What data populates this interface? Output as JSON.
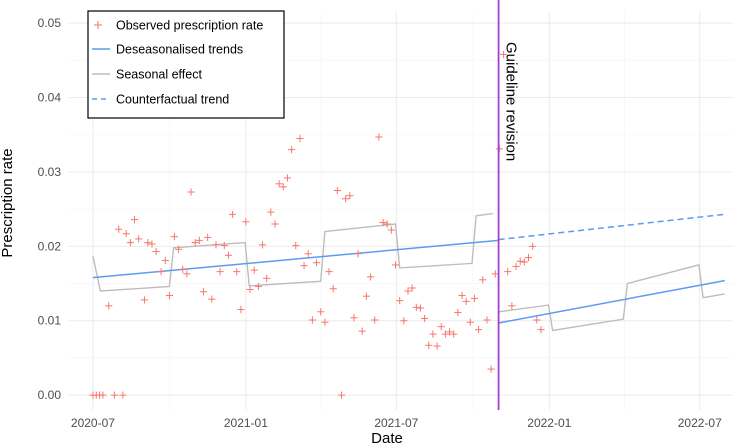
{
  "chart_data": {
    "type": "scatter",
    "title": "",
    "xlabel": "Date",
    "ylabel": "Prescription rate",
    "xlim": [
      "2020-06-01",
      "2022-08-10"
    ],
    "ylim": [
      -0.002,
      0.0515
    ],
    "grid": true,
    "x_ticks": [
      {
        "date": "2020-07-01",
        "label": "2020-07"
      },
      {
        "date": "2021-01-01",
        "label": "2021-01"
      },
      {
        "date": "2021-07-01",
        "label": "2021-07"
      },
      {
        "date": "2022-01-01",
        "label": "2022-01"
      },
      {
        "date": "2022-07-01",
        "label": "2022-07"
      }
    ],
    "y_ticks": [
      {
        "value": 0.0,
        "label": "0.00"
      },
      {
        "value": 0.01,
        "label": "0.01"
      },
      {
        "value": 0.02,
        "label": "0.02"
      },
      {
        "value": 0.03,
        "label": "0.03"
      },
      {
        "value": 0.04,
        "label": "0.04"
      },
      {
        "value": 0.05,
        "label": "0.05"
      }
    ],
    "legend": {
      "position": "top-left",
      "entries": [
        {
          "key": "observed",
          "label": "Observed prescription rate"
        },
        {
          "key": "deseasonalised",
          "label": "Deseasonalised trends"
        },
        {
          "key": "seasonal",
          "label": "Seasonal effect"
        },
        {
          "key": "counterfactual",
          "label": "Counterfactual trend"
        }
      ]
    },
    "colors": {
      "observed": "#f8766d",
      "trend": "#5b9bf0",
      "seasonal": "#bdbdbd",
      "intervention": "#a63fc9",
      "grid": "#ebebeb"
    },
    "intervention": {
      "date": "2021-11-01",
      "label": "Guideline revision"
    },
    "series": [
      {
        "name": "Observed prescription rate",
        "kind": "points",
        "points": [
          [
            "2020-07-01",
            0.0
          ],
          [
            "2020-07-05",
            0.0
          ],
          [
            "2020-07-09",
            0.0
          ],
          [
            "2020-07-13",
            0.0
          ],
          [
            "2020-07-20",
            0.012
          ],
          [
            "2020-07-27",
            0.0
          ],
          [
            "2020-08-01",
            0.0223
          ],
          [
            "2020-08-06",
            0.0
          ],
          [
            "2020-08-10",
            0.0217
          ],
          [
            "2020-08-15",
            0.0205
          ],
          [
            "2020-08-20",
            0.0236
          ],
          [
            "2020-08-25",
            0.021
          ],
          [
            "2020-09-01",
            0.0128
          ],
          [
            "2020-09-05",
            0.0205
          ],
          [
            "2020-09-10",
            0.0203
          ],
          [
            "2020-09-15",
            0.0193
          ],
          [
            "2020-09-21",
            0.0166
          ],
          [
            "2020-09-26",
            0.0181
          ],
          [
            "2020-10-01",
            0.0134
          ],
          [
            "2020-10-07",
            0.0213
          ],
          [
            "2020-10-12",
            0.0196
          ],
          [
            "2020-10-17",
            0.0169
          ],
          [
            "2020-10-22",
            0.0163
          ],
          [
            "2020-10-27",
            0.0273
          ],
          [
            "2020-11-01",
            0.0205
          ],
          [
            "2020-11-06",
            0.0208
          ],
          [
            "2020-11-11",
            0.0139
          ],
          [
            "2020-11-16",
            0.0212
          ],
          [
            "2020-11-21",
            0.0129
          ],
          [
            "2020-11-26",
            0.0202
          ],
          [
            "2020-12-01",
            0.0166
          ],
          [
            "2020-12-06",
            0.0201
          ],
          [
            "2020-12-11",
            0.0188
          ],
          [
            "2020-12-16",
            0.0243
          ],
          [
            "2020-12-21",
            0.0166
          ],
          [
            "2020-12-26",
            0.0115
          ],
          [
            "2021-01-01",
            0.0233
          ],
          [
            "2021-01-06",
            0.0142
          ],
          [
            "2021-01-11",
            0.0168
          ],
          [
            "2021-01-16",
            0.0146
          ],
          [
            "2021-01-21",
            0.0202
          ],
          [
            "2021-01-26",
            0.0157
          ],
          [
            "2021-01-31",
            0.0246
          ],
          [
            "2021-02-05",
            0.023
          ],
          [
            "2021-02-10",
            0.0284
          ],
          [
            "2021-02-15",
            0.028
          ],
          [
            "2021-02-20",
            0.0292
          ],
          [
            "2021-02-25",
            0.033
          ],
          [
            "2021-03-02",
            0.0201
          ],
          [
            "2021-03-07",
            0.0345
          ],
          [
            "2021-03-12",
            0.0174
          ],
          [
            "2021-03-17",
            0.019
          ],
          [
            "2021-03-22",
            0.0101
          ],
          [
            "2021-03-27",
            0.0178
          ],
          [
            "2021-04-01",
            0.0112
          ],
          [
            "2021-04-06",
            0.0098
          ],
          [
            "2021-04-11",
            0.0166
          ],
          [
            "2021-04-16",
            0.0143
          ],
          [
            "2021-04-21",
            0.0275
          ],
          [
            "2021-04-26",
            0.0
          ],
          [
            "2021-05-01",
            0.0264
          ],
          [
            "2021-05-06",
            0.0268
          ],
          [
            "2021-05-11",
            0.0104
          ],
          [
            "2021-05-16",
            0.019
          ],
          [
            "2021-05-21",
            0.0086
          ],
          [
            "2021-05-26",
            0.0133
          ],
          [
            "2021-05-31",
            0.0159
          ],
          [
            "2021-06-05",
            0.0101
          ],
          [
            "2021-06-10",
            0.0347
          ],
          [
            "2021-06-15",
            0.0232
          ],
          [
            "2021-06-20",
            0.023
          ],
          [
            "2021-06-25",
            0.0222
          ],
          [
            "2021-06-30",
            0.0175
          ],
          [
            "2021-07-05",
            0.0127
          ],
          [
            "2021-07-10",
            0.01
          ],
          [
            "2021-07-15",
            0.014
          ],
          [
            "2021-07-20",
            0.0144
          ],
          [
            "2021-07-25",
            0.0118
          ],
          [
            "2021-07-30",
            0.0117
          ],
          [
            "2021-08-04",
            0.0103
          ],
          [
            "2021-08-09",
            0.0067
          ],
          [
            "2021-08-14",
            0.0082
          ],
          [
            "2021-08-19",
            0.0066
          ],
          [
            "2021-08-24",
            0.0092
          ],
          [
            "2021-08-29",
            0.0082
          ],
          [
            "2021-09-03",
            0.0085
          ],
          [
            "2021-09-08",
            0.0082
          ],
          [
            "2021-09-13",
            0.0111
          ],
          [
            "2021-09-18",
            0.0134
          ],
          [
            "2021-09-23",
            0.0126
          ],
          [
            "2021-09-28",
            0.0098
          ],
          [
            "2021-10-03",
            0.013
          ],
          [
            "2021-10-08",
            0.0088
          ],
          [
            "2021-10-13",
            0.0155
          ],
          [
            "2021-10-18",
            0.0101
          ],
          [
            "2021-10-23",
            0.0035
          ],
          [
            "2021-10-28",
            0.0163
          ],
          [
            "2021-11-02",
            0.0331
          ],
          [
            "2021-11-07",
            0.0458
          ],
          [
            "2021-11-12",
            0.0166
          ],
          [
            "2021-11-17",
            0.012
          ],
          [
            "2021-11-22",
            0.0173
          ],
          [
            "2021-11-27",
            0.018
          ],
          [
            "2021-12-02",
            0.0179
          ],
          [
            "2021-12-07",
            0.0185
          ],
          [
            "2021-12-12",
            0.02
          ],
          [
            "2021-12-17",
            0.0101
          ],
          [
            "2021-12-22",
            0.0088
          ]
        ]
      },
      {
        "name": "Deseasonalised trends",
        "kind": "segments",
        "segments": [
          [
            [
              "2020-07-01",
              0.0158
            ],
            [
              "2021-11-01",
              0.0208
            ]
          ],
          [
            [
              "2021-11-01",
              0.0097
            ],
            [
              "2022-07-31",
              0.0154
            ]
          ]
        ]
      },
      {
        "name": "Seasonal effect",
        "kind": "polyline",
        "segments": [
          [
            [
              "2020-07-01",
              0.0187
            ],
            [
              "2020-07-10",
              0.014
            ],
            [
              "2020-10-01",
              0.0146
            ],
            [
              "2020-10-06",
              0.0198
            ],
            [
              "2020-12-31",
              0.0205
            ],
            [
              "2021-01-05",
              0.0147
            ],
            [
              "2021-04-01",
              0.0153
            ],
            [
              "2021-04-06",
              0.022
            ],
            [
              "2021-06-30",
              0.023
            ],
            [
              "2021-07-05",
              0.0171
            ],
            [
              "2021-09-30",
              0.0177
            ],
            [
              "2021-10-05",
              0.0241
            ],
            [
              "2021-10-25",
              0.0244
            ]
          ],
          [
            [
              "2021-11-01",
              0.0112
            ],
            [
              "2021-12-31",
              0.0121
            ],
            [
              "2022-01-05",
              0.0087
            ],
            [
              "2022-03-31",
              0.0102
            ],
            [
              "2022-04-05",
              0.015
            ],
            [
              "2022-06-30",
              0.0175
            ],
            [
              "2022-07-05",
              0.0131
            ],
            [
              "2022-07-31",
              0.0136
            ]
          ]
        ]
      },
      {
        "name": "Counterfactual trend",
        "kind": "segments",
        "segments": [
          [
            [
              "2021-11-01",
              0.0209
            ],
            [
              "2022-07-31",
              0.0243
            ]
          ]
        ]
      }
    ]
  }
}
